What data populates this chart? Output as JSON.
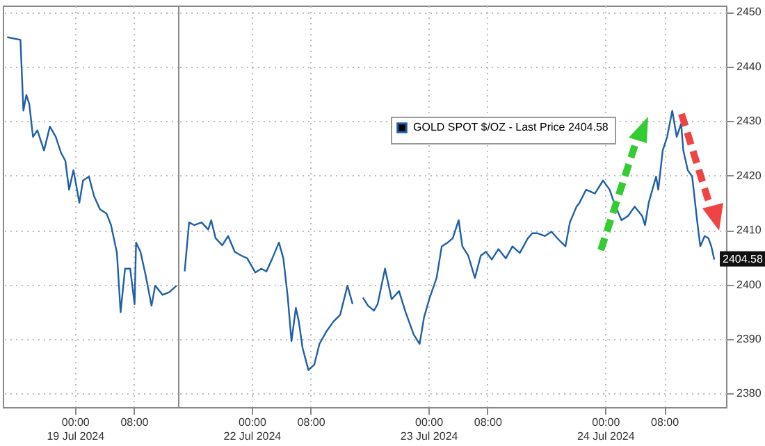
{
  "chart_data": [
    {
      "type": "line",
      "x": [
        "2024-07-18T14:48",
        "2024-07-18T16:36",
        "2024-07-18T17:00",
        "2024-07-18T17:24",
        "2024-07-18T17:48",
        "2024-07-18T18:18",
        "2024-07-18T18:54",
        "2024-07-18T19:48",
        "2024-07-18T20:36",
        "2024-07-18T21:24",
        "2024-07-18T22:06",
        "2024-07-18T22:42",
        "2024-07-18T23:12",
        "2024-07-18T23:48",
        "2024-07-19T00:36",
        "2024-07-19T01:06",
        "2024-07-19T01:54",
        "2024-07-19T02:36",
        "2024-07-19T03:24",
        "2024-07-19T04:18",
        "2024-07-19T04:54",
        "2024-07-19T05:42",
        "2024-07-19T06:12",
        "2024-07-19T06:48",
        "2024-07-19T07:30",
        "2024-07-19T08:06",
        "2024-07-19T08:18",
        "2024-07-19T08:54",
        "2024-07-19T09:36",
        "2024-07-19T10:24",
        "2024-07-19T10:54",
        "2024-07-19T11:54",
        "2024-07-19T12:48",
        "2024-07-19T13:48"
      ],
      "series": [
        {
          "color": "#1f5fa8",
          "values": [
            2445.4,
            2444.9,
            2431.9,
            2434.8,
            2433.1,
            2427.1,
            2428.3,
            2424.6,
            2429.0,
            2427.1,
            2424.2,
            2422.7,
            2417.4,
            2421.0,
            2415.0,
            2419.1,
            2419.8,
            2416.2,
            2413.8,
            2413.0,
            2410.9,
            2405.8,
            2394.9,
            2402.9,
            2402.9,
            2396.4,
            2407.7,
            2406.0,
            2401.7,
            2396.1,
            2399.8,
            2398.1,
            2398.6,
            2399.8
          ]
        }
      ],
      "xlim": [
        "2024-07-18T14:12",
        "2024-07-19T14:00"
      ],
      "xticks": [
        {
          "value": "2024-07-19T00:00",
          "label": "00:00\n19 Jul 2024"
        },
        {
          "value": "2024-07-19T08:00",
          "label": "08:00"
        }
      ],
      "ylim": [
        2377.5,
        2451.2
      ],
      "yticks": [
        2380,
        2390,
        2400,
        2410,
        2420,
        2430,
        2440,
        2450
      ],
      "tick_labels": "x",
      "grid": true,
      "marker": "none",
      "line_style": "solid"
    },
    {
      "type": "line",
      "x": [
        "2024-07-21T14:54",
        "2024-07-21T15:30",
        "2024-07-21T16:12",
        "2024-07-21T17:12",
        "2024-07-21T18:06",
        "2024-07-21T18:30",
        "2024-07-21T19:06",
        "2024-07-21T20:00",
        "2024-07-21T20:48",
        "2024-07-21T21:42",
        "2024-07-21T22:36",
        "2024-07-21T23:24",
        "2024-07-22T00:30",
        "2024-07-22T01:18",
        "2024-07-22T02:00",
        "2024-07-22T02:48",
        "2024-07-22T03:42",
        "2024-07-22T04:18",
        "2024-07-22T04:54",
        "2024-07-22T05:24",
        "2024-07-22T06:00",
        "2024-07-22T06:24",
        "2024-07-22T06:54",
        "2024-07-22T07:42",
        "2024-07-22T08:30",
        "2024-07-22T09:12",
        "2024-07-22T10:12",
        "2024-07-22T11:06",
        "2024-07-22T12:00",
        "2024-07-22T13:00",
        "2024-07-22T13:42",
        "2024-07-22T14:24",
        "2024-07-22T15:06",
        "2024-07-22T15:48",
        "2024-07-22T16:36",
        "2024-07-22T17:06",
        "2024-07-22T18:06",
        "2024-07-22T19:00",
        "2024-07-22T20:00",
        "2024-07-22T20:54",
        "2024-07-22T22:00",
        "2024-07-22T22:48",
        "2024-07-22T23:24",
        "2024-07-23T00:06",
        "2024-07-23T01:06",
        "2024-07-23T01:48",
        "2024-07-23T02:36",
        "2024-07-23T03:18",
        "2024-07-23T04:06",
        "2024-07-23T04:36",
        "2024-07-23T05:24",
        "2024-07-23T06:18",
        "2024-07-23T07:06",
        "2024-07-23T07:48",
        "2024-07-23T08:36",
        "2024-07-23T09:30",
        "2024-07-23T10:30",
        "2024-07-23T11:24",
        "2024-07-23T12:24",
        "2024-07-23T13:30",
        "2024-07-23T14:06",
        "2024-07-23T14:48",
        "2024-07-23T15:48",
        "2024-07-23T16:42",
        "2024-07-23T17:42",
        "2024-07-23T18:36",
        "2024-07-23T19:12",
        "2024-07-23T20:06",
        "2024-07-23T20:30",
        "2024-07-23T21:24",
        "2024-07-23T22:36",
        "2024-07-23T23:42",
        "2024-07-24T00:36",
        "2024-07-24T01:12",
        "2024-07-24T02:12",
        "2024-07-24T03:06",
        "2024-07-24T04:00",
        "2024-07-24T05:00",
        "2024-07-24T05:24",
        "2024-07-24T05:54",
        "2024-07-24T06:54",
        "2024-07-24T07:12",
        "2024-07-24T07:48",
        "2024-07-24T08:24",
        "2024-07-24T09:06",
        "2024-07-24T09:42",
        "2024-07-24T10:18",
        "2024-07-24T10:36",
        "2024-07-24T11:12",
        "2024-07-24T11:48",
        "2024-07-24T12:30",
        "2024-07-24T12:54",
        "2024-07-24T13:30",
        "2024-07-24T14:00",
        "2024-07-24T14:24",
        "2024-07-24T14:48"
      ],
      "series": [
        {
          "name": "GOLD SPOT $/OZ - Last Price 2404.58",
          "color": "#1f5fa8",
          "values": [
            2402.4,
            2411.4,
            2410.9,
            2411.4,
            2410.1,
            2411.8,
            2408.5,
            2407.2,
            2408.9,
            2406.0,
            2405.3,
            2404.8,
            2402.2,
            2402.9,
            2402.4,
            2404.8,
            2407.7,
            2404.8,
            2397.6,
            2389.6,
            2395.7,
            2393.2,
            2388.4,
            2384.3,
            2385.3,
            2389.1,
            2391.5,
            2393.2,
            2394.4,
            2399.8,
            2396.4,
            null,
            2397.6,
            2396.1,
            2395.2,
            2396.4,
            2402.9,
            2397.3,
            2398.8,
            2394.9,
            2390.8,
            2389.1,
            2394.0,
            2397.3,
            2401.2,
            2407.0,
            2407.7,
            2408.5,
            2411.8,
            2407.0,
            2405.3,
            2401.2,
            2405.3,
            2406.0,
            2404.6,
            2406.5,
            2404.8,
            2407.0,
            2405.8,
            2408.5,
            2409.4,
            2409.4,
            2408.9,
            2409.7,
            2408.2,
            2407.0,
            2411.4,
            2414.3,
            2415.0,
            2417.4,
            2416.7,
            2419.1,
            2417.4,
            2415.0,
            2411.8,
            2412.6,
            2414.3,
            2412.6,
            2410.9,
            2415.0,
            2419.8,
            2417.4,
            2424.6,
            2427.1,
            2431.9,
            2427.1,
            2429.5,
            2424.6,
            2421.0,
            2419.8,
            2411.4,
            2407.0,
            2408.9,
            2408.5,
            2407.0,
            2404.58
          ]
        }
      ],
      "xlim": [
        "2024-07-21T14:00",
        "2024-07-24T16:24"
      ],
      "xticks": [
        {
          "value": "2024-07-22T00:00",
          "label": "00:00\n22 Jul 2024"
        },
        {
          "value": "2024-07-22T08:00",
          "label": "08:00"
        },
        {
          "value": "2024-07-23T00:00",
          "label": "00:00\n23 Jul 2024"
        },
        {
          "value": "2024-07-23T08:00",
          "label": "08:00"
        },
        {
          "value": "2024-07-24T00:00",
          "label": "00:00\n24 Jul 2024"
        },
        {
          "value": "2024-07-24T08:00",
          "label": "08:00"
        }
      ],
      "ylim": [
        2377.5,
        2451.2
      ],
      "yticks": [
        2380,
        2390,
        2400,
        2410,
        2420,
        2430,
        2440,
        2450
      ],
      "grid": true,
      "legend": "top right",
      "marker": "none",
      "line_style": "solid",
      "annotations": [
        {
          "text": "2404.58",
          "x": "2024-07-24T14:48",
          "y": 2404.58
        }
      ]
    }
  ]
}
